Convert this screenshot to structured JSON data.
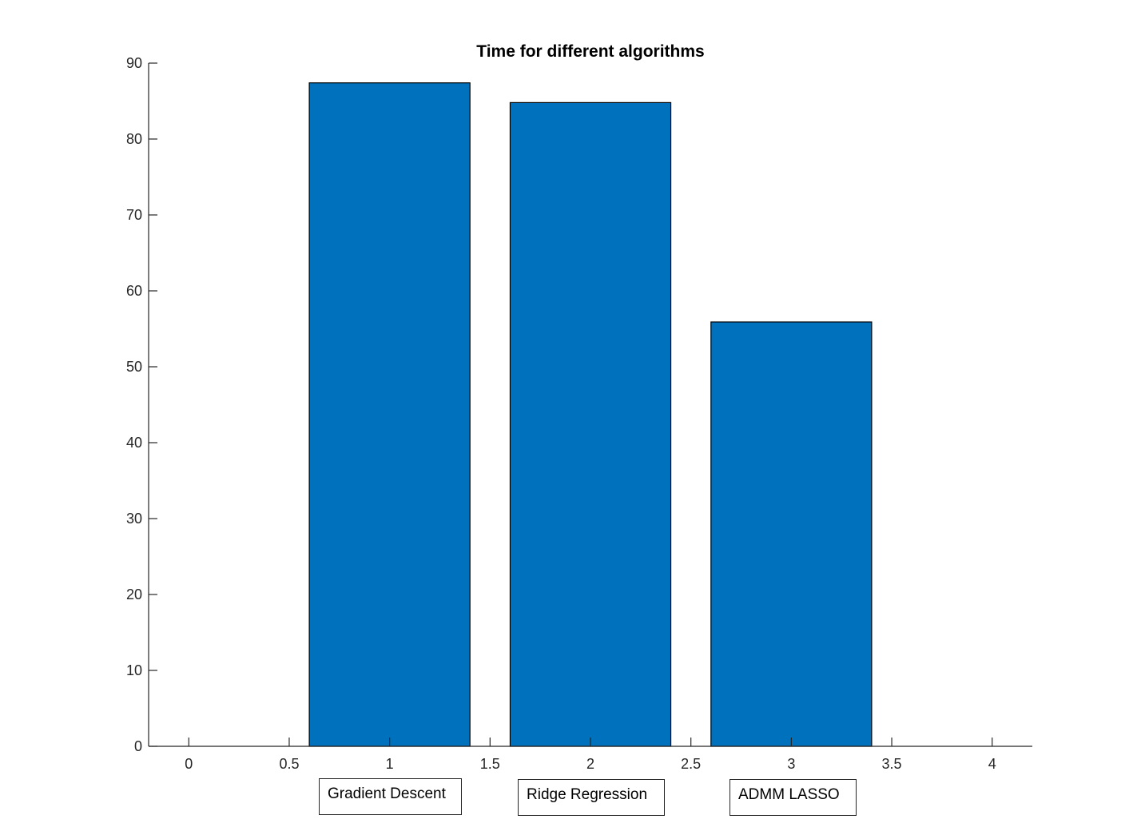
{
  "chart_data": {
    "type": "bar",
    "title": "Time for different algorithms",
    "xlabel": "",
    "ylabel": "",
    "x": [
      1,
      2,
      3
    ],
    "values": [
      87.4,
      84.8,
      55.9
    ],
    "xlim": [
      -0.2,
      4.2
    ],
    "ylim": [
      0,
      90
    ],
    "xticks": [
      "0",
      "0.5",
      "1",
      "1.5",
      "2",
      "2.5",
      "3",
      "3.5",
      "4"
    ],
    "yticks": [
      "0",
      "10",
      "20",
      "30",
      "40",
      "50",
      "60",
      "70",
      "80",
      "90"
    ],
    "bar_width": 0.8,
    "bar_color": "#0072BD",
    "edge_color": "#000000",
    "grid": false,
    "annotations": [
      "Gradient Descent",
      "Ridge Regression",
      "ADMM LASSO"
    ]
  }
}
